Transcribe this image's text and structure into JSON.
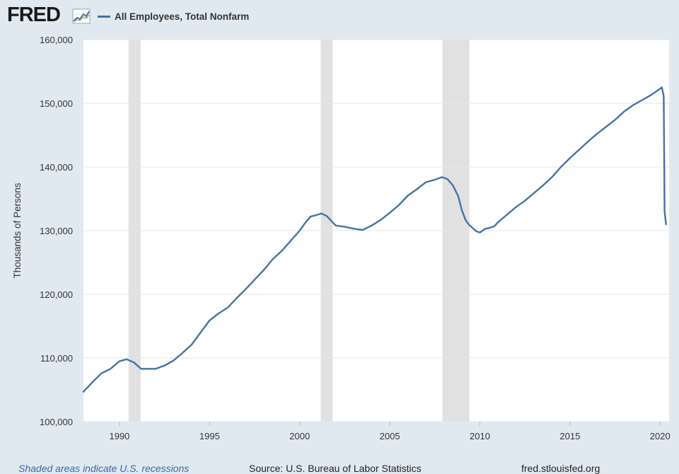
{
  "header": {
    "logo_text": "FRED",
    "legend_label": "All Employees, Total Nonfarm"
  },
  "colors": {
    "series": "#4572a7",
    "recession": "#e1e1e1",
    "plot_background": "#ffffff",
    "page_background": "#e1e9f0",
    "gridline": "#e6e6e6"
  },
  "icons": {
    "logo_mark": "fred-line-graph-icon"
  },
  "footer": {
    "note": "Shaded areas indicate U.S. recessions",
    "source": "Source: U.S. Bureau of Labor Statistics",
    "site": "fred.stlouisfed.org"
  },
  "chart_data": {
    "type": "line",
    "title": "",
    "xlabel": "",
    "ylabel": "Thousands of Persons",
    "xlim": [
      1988.0,
      2020.5
    ],
    "ylim": [
      100000,
      160000
    ],
    "x_tick_labels": [
      "1990",
      "1995",
      "2000",
      "2005",
      "2010",
      "2015",
      "2020"
    ],
    "y_tick_labels": [
      "100,000",
      "110,000",
      "120,000",
      "130,000",
      "140,000",
      "150,000",
      "160,000"
    ],
    "grid": "horizontal",
    "legend": "top-left",
    "recessions": [
      [
        1990.5,
        1991.17
      ],
      [
        2001.17,
        2001.83
      ],
      [
        2007.92,
        2009.42
      ]
    ],
    "series": [
      {
        "name": "All Employees, Total Nonfarm",
        "x": [
          1988.0,
          1988.5,
          1989.0,
          1989.5,
          1990.0,
          1990.4,
          1990.8,
          1991.2,
          1991.5,
          1992.0,
          1992.5,
          1993.0,
          1993.5,
          1994.0,
          1994.5,
          1995.0,
          1995.5,
          1996.0,
          1996.5,
          1997.0,
          1997.5,
          1998.0,
          1998.5,
          1999.0,
          1999.5,
          2000.0,
          2000.3,
          2000.6,
          2001.0,
          2001.2,
          2001.5,
          2001.8,
          2002.0,
          2002.5,
          2003.0,
          2003.5,
          2004.0,
          2004.5,
          2005.0,
          2005.5,
          2006.0,
          2006.5,
          2007.0,
          2007.5,
          2007.9,
          2008.2,
          2008.5,
          2008.8,
          2009.0,
          2009.2,
          2009.4,
          2009.6,
          2009.8,
          2010.0,
          2010.3,
          2010.5,
          2010.8,
          2011.0,
          2011.5,
          2012.0,
          2012.5,
          2013.0,
          2013.5,
          2014.0,
          2014.5,
          2015.0,
          2015.5,
          2016.0,
          2016.5,
          2017.0,
          2017.5,
          2018.0,
          2018.5,
          2019.0,
          2019.5,
          2020.0,
          2020.1,
          2020.2,
          2020.25,
          2020.33
        ],
        "values": [
          104700,
          106200,
          107600,
          108300,
          109500,
          109800,
          109300,
          108300,
          108300,
          108300,
          108800,
          109600,
          110800,
          112100,
          114000,
          115900,
          117000,
          117900,
          119400,
          120800,
          122300,
          123800,
          125500,
          126800,
          128400,
          130000,
          131200,
          132200,
          132500,
          132700,
          132300,
          131400,
          130800,
          130600,
          130300,
          130100,
          130800,
          131700,
          132800,
          134000,
          135500,
          136500,
          137600,
          138000,
          138400,
          138100,
          137100,
          135400,
          133200,
          131700,
          130900,
          130400,
          129900,
          129700,
          130300,
          130400,
          130700,
          131300,
          132500,
          133700,
          134700,
          135900,
          137100,
          138400,
          140000,
          141400,
          142700,
          144000,
          145200,
          146300,
          147400,
          148700,
          149700,
          150500,
          151300,
          152300,
          152500,
          151100,
          133000,
          131000
        ]
      }
    ]
  }
}
